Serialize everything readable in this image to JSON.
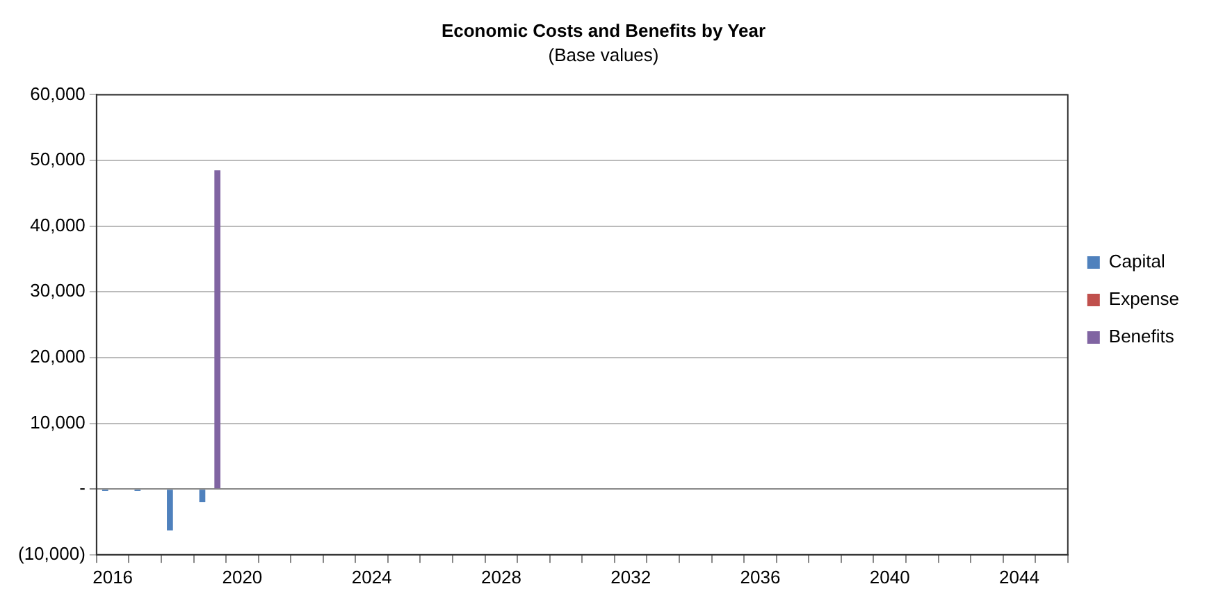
{
  "chart_data": {
    "type": "bar",
    "title": "Economic Costs and Benefits by Year",
    "subtitle": "(Base values)",
    "categories": [
      "2016",
      null,
      null,
      null,
      "2020",
      null,
      null,
      null,
      "2024",
      null,
      null,
      null,
      "2028",
      null,
      null,
      null,
      "2032",
      null,
      null,
      null,
      "2036",
      null,
      null,
      null,
      "2040",
      null,
      null,
      null,
      "2044",
      null
    ],
    "series": [
      {
        "name": "Capital",
        "color": "#4f81bd",
        "values": [
          -300,
          -300,
          -6300,
          -2000,
          0,
          0,
          0,
          0,
          0,
          0,
          0,
          0,
          0,
          0,
          0,
          0,
          0,
          0,
          0,
          0,
          0,
          0,
          0,
          0,
          0,
          0,
          0,
          0,
          0,
          0
        ]
      },
      {
        "name": "Expense",
        "color": "#c0504d",
        "values": [
          0,
          0,
          0,
          0,
          0,
          0,
          0,
          0,
          0,
          0,
          0,
          0,
          0,
          0,
          0,
          0,
          0,
          0,
          0,
          0,
          0,
          0,
          0,
          0,
          0,
          0,
          0,
          0,
          0,
          0
        ]
      },
      {
        "name": "Benefits",
        "color": "#8064a2",
        "values": [
          0,
          0,
          0,
          48500,
          0,
          0,
          0,
          0,
          0,
          0,
          0,
          0,
          0,
          0,
          0,
          0,
          0,
          0,
          0,
          0,
          0,
          0,
          0,
          0,
          0,
          0,
          0,
          0,
          0,
          0
        ]
      }
    ],
    "ylim": [
      -10000,
      60000
    ],
    "yticks": [
      {
        "value": -10000,
        "label": "(10,000)"
      },
      {
        "value": 0,
        "label": "-"
      },
      {
        "value": 10000,
        "label": "10,000"
      },
      {
        "value": 20000,
        "label": "20,000"
      },
      {
        "value": 30000,
        "label": "30,000"
      },
      {
        "value": 40000,
        "label": "40,000"
      },
      {
        "value": 50000,
        "label": "50,000"
      },
      {
        "value": 60000,
        "label": "60,000"
      }
    ],
    "grid": "y",
    "legend": "right"
  }
}
